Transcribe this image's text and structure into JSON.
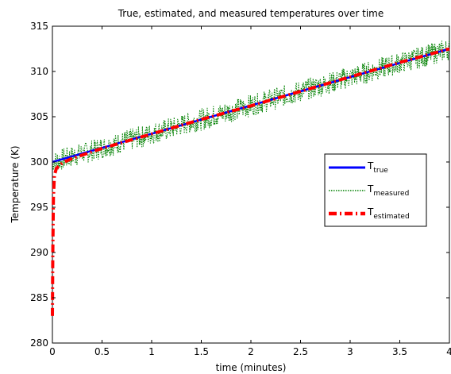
{
  "chart_data": {
    "type": "line",
    "title": "True, estimated, and measured temperatures over time",
    "xlabel": "time (minutes)",
    "ylabel": "Temperature (K)",
    "xlim": [
      0,
      4
    ],
    "ylim": [
      280,
      315
    ],
    "xticks": [
      0,
      0.5,
      1,
      1.5,
      2,
      2.5,
      3,
      3.5,
      4
    ],
    "xtick_labels": [
      "0",
      "0.5",
      "1",
      "1.5",
      "2",
      "2.5",
      "3",
      "3.5",
      "4"
    ],
    "yticks": [
      280,
      285,
      290,
      295,
      300,
      305,
      310,
      315
    ],
    "ytick_labels": [
      "280",
      "285",
      "290",
      "295",
      "300",
      "305",
      "310",
      "315"
    ],
    "grid": false,
    "legend_position": "right",
    "series": [
      {
        "name_main": "T",
        "name_sub": "true",
        "color": "#0000ff",
        "style": "solid",
        "x": [
          0,
          4
        ],
        "y": [
          300.0,
          312.5
        ]
      },
      {
        "name_main": "T",
        "name_sub": "measured",
        "color": "#008000",
        "style": "dotted",
        "noise_amplitude_k": 1.2,
        "x": [
          0,
          4
        ],
        "y": [
          300.0,
          312.5
        ]
      },
      {
        "name_main": "T",
        "name_sub": "estimated",
        "color": "#ff0000",
        "style": "dashdot",
        "x": [
          0,
          0.004,
          0.01,
          0.02,
          0.04,
          0.07,
          0.1,
          0.2,
          0.5,
          1,
          1.5,
          2,
          2.5,
          3,
          3.5,
          4
        ],
        "y": [
          283.0,
          290.0,
          296.0,
          298.5,
          299.3,
          299.6,
          299.9,
          300.4,
          301.5,
          303.1,
          304.7,
          306.2,
          307.8,
          309.4,
          311.0,
          312.5
        ]
      }
    ]
  }
}
